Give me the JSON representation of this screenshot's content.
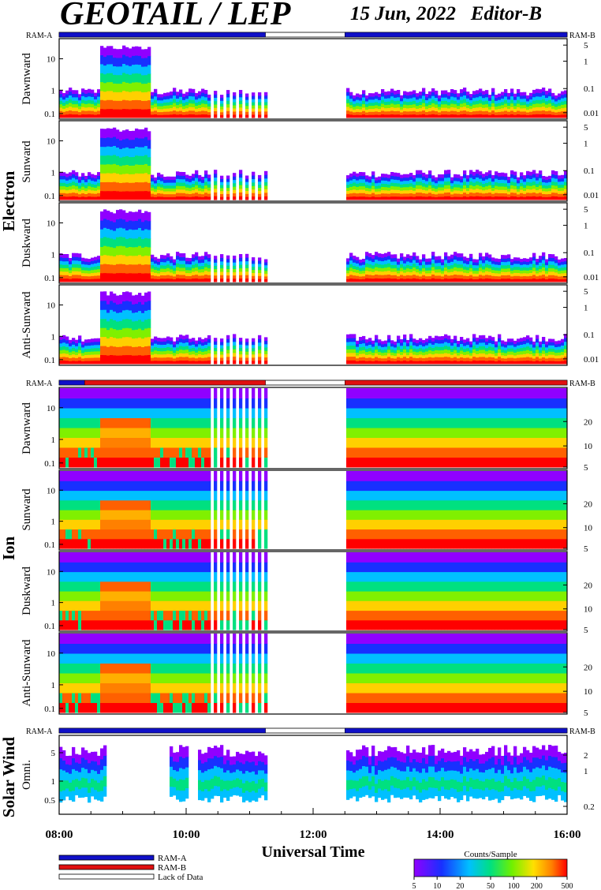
{
  "header": {
    "title": "GEOTAIL / LEP",
    "date": "15 Jun, 2022",
    "editor": "Editor-B"
  },
  "x_axis": {
    "label": "Universal Time",
    "ticks": [
      "08:00",
      "10:00",
      "12:00",
      "14:00",
      "16:00"
    ]
  },
  "groups": [
    {
      "name": "Electron",
      "ram_left": "RAM-A",
      "ram_right": "RAM-B",
      "panels": [
        "Dawnward",
        "Sunward",
        "Duskward",
        "Anti-Sunward"
      ],
      "left_ticks": [
        "10",
        "1",
        "0.1"
      ],
      "right_ticks": [
        "5",
        "1",
        "0.1",
        "0.01"
      ]
    },
    {
      "name": "Ion",
      "ram_left": "RAM-A",
      "ram_right": "RAM-B",
      "panels": [
        "Dawnward",
        "Sunward",
        "Duskward",
        "Anti-Sunward"
      ],
      "left_ticks": [
        "10",
        "1",
        "0.1"
      ],
      "right_ticks": [
        "20",
        "10",
        "5"
      ]
    },
    {
      "name": "Solar Wind",
      "ram_left": "RAM-A",
      "ram_right": "RAM-B",
      "panels": [
        "Omni."
      ],
      "left_ticks": [
        "5",
        "1",
        "0.5"
      ],
      "right_ticks": [
        "2",
        "1",
        "0.2"
      ]
    }
  ],
  "legend": {
    "ram_a": "RAM-A",
    "ram_b": "RAM-B",
    "lack": "Lack of Data"
  },
  "colorbar": {
    "title": "Counts/Sample",
    "ticks": [
      "5",
      "10",
      "20",
      "50",
      "100",
      "200",
      "500"
    ]
  },
  "colors": {
    "ram_a": "#1010c8",
    "ram_b": "#e01010",
    "background": "#ffffff"
  },
  "chart_data": {
    "type": "heatmap",
    "x_range_hours": [
      8,
      16
    ],
    "data_gap_hours": [
      11.25,
      12.5
    ],
    "colorbar_range": [
      5,
      500
    ],
    "colorbar_scale": "log",
    "panels": [
      {
        "group": "Electron",
        "name": "Dawnward",
        "y_left_range": [
          0.08,
          30
        ],
        "y_right_range": [
          0.01,
          7
        ]
      },
      {
        "group": "Electron",
        "name": "Sunward",
        "y_left_range": [
          0.08,
          30
        ],
        "y_right_range": [
          0.01,
          7
        ]
      },
      {
        "group": "Electron",
        "name": "Duskward",
        "y_left_range": [
          0.08,
          30
        ],
        "y_right_range": [
          0.01,
          7
        ]
      },
      {
        "group": "Electron",
        "name": "Anti-Sunward",
        "y_left_range": [
          0.08,
          30
        ],
        "y_right_range": [
          0.01,
          7
        ]
      },
      {
        "group": "Ion",
        "name": "Dawnward",
        "y_left_range": [
          0.08,
          40
        ],
        "y_right_range": [
          5,
          40
        ]
      },
      {
        "group": "Ion",
        "name": "Sunward",
        "y_left_range": [
          0.08,
          40
        ],
        "y_right_range": [
          5,
          40
        ]
      },
      {
        "group": "Ion",
        "name": "Duskward",
        "y_left_range": [
          0.08,
          40
        ],
        "y_right_range": [
          5,
          40
        ]
      },
      {
        "group": "Ion",
        "name": "Anti-Sunward",
        "y_left_range": [
          0.08,
          40
        ],
        "y_right_range": [
          5,
          40
        ]
      },
      {
        "group": "Solar Wind",
        "name": "Omni.",
        "y_left_range": [
          0.25,
          10
        ],
        "y_right_range": [
          0.15,
          3
        ]
      }
    ]
  }
}
